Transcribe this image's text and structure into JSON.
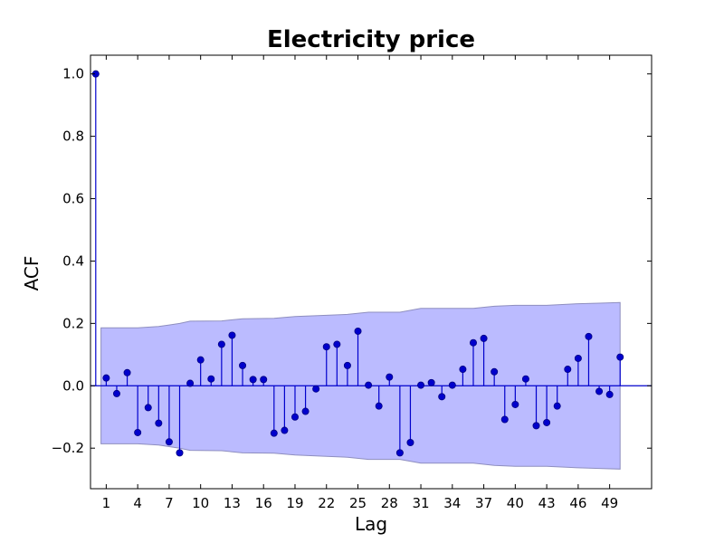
{
  "chart_data": {
    "type": "stem",
    "title": "Electricity price",
    "xlabel": "Lag",
    "ylabel": "ACF",
    "xlim": [
      -0.5,
      53
    ],
    "ylim": [
      -0.33,
      1.06
    ],
    "xticks": [
      1,
      4,
      7,
      10,
      13,
      16,
      19,
      22,
      25,
      28,
      31,
      34,
      37,
      40,
      43,
      46,
      49
    ],
    "xtick_labels": [
      "1",
      "4",
      "7",
      "10",
      "13",
      "16",
      "19",
      "22",
      "25",
      "28",
      "31",
      "34",
      "37",
      "40",
      "43",
      "46",
      "49"
    ],
    "yticks": [
      -0.2,
      0.0,
      0.2,
      0.4,
      0.6,
      0.8,
      1.0
    ],
    "ytick_labels": [
      "−0.2",
      "0.0",
      "0.2",
      "0.4",
      "0.6",
      "0.8",
      "1.0"
    ],
    "grid": false,
    "series": [
      {
        "lags": [
          0,
          1,
          2,
          3,
          4,
          5,
          6,
          7,
          8,
          9,
          10,
          11,
          12,
          13,
          14,
          15,
          16,
          17,
          18,
          19,
          20,
          21,
          22,
          23,
          24,
          25,
          26,
          27,
          28,
          29,
          30,
          31,
          32,
          33,
          34,
          35,
          36,
          37,
          38,
          39,
          40,
          41,
          42,
          43,
          44,
          45,
          46,
          47,
          48,
          49,
          50
        ],
        "values": [
          1.0,
          0.025,
          -0.025,
          0.042,
          -0.15,
          -0.07,
          -0.12,
          -0.18,
          -0.215,
          0.008,
          0.083,
          0.022,
          0.133,
          0.162,
          0.065,
          0.02,
          0.02,
          -0.152,
          -0.143,
          -0.1,
          -0.082,
          -0.01,
          0.125,
          0.133,
          0.065,
          0.175,
          0.002,
          -0.065,
          0.028,
          -0.215,
          -0.182,
          0.002,
          0.01,
          -0.035,
          0.002,
          0.053,
          0.138,
          0.152,
          0.045,
          -0.108,
          -0.06,
          0.022,
          -0.128,
          -0.118,
          -0.065,
          0.053,
          0.088,
          0.158,
          -0.018,
          -0.028,
          0.092
        ]
      }
    ],
    "confidence_band": {
      "lags": [
        0.5,
        4,
        6,
        7,
        8,
        9,
        12,
        14,
        17,
        19,
        22,
        24,
        26,
        29,
        31,
        36,
        38,
        40,
        43,
        46,
        48,
        50
      ],
      "upper": [
        0.186,
        0.186,
        0.19,
        0.195,
        0.2,
        0.207,
        0.208,
        0.215,
        0.216,
        0.222,
        0.226,
        0.229,
        0.236,
        0.236,
        0.248,
        0.248,
        0.255,
        0.258,
        0.258,
        0.263,
        0.265,
        0.267
      ],
      "lower": [
        -0.186,
        -0.186,
        -0.19,
        -0.195,
        -0.2,
        -0.207,
        -0.208,
        -0.215,
        -0.216,
        -0.222,
        -0.226,
        -0.229,
        -0.236,
        -0.236,
        -0.248,
        -0.248,
        -0.255,
        -0.258,
        -0.258,
        -0.263,
        -0.265,
        -0.267
      ]
    },
    "colors": {
      "stem": "#0000cc",
      "marker": "#0000cc",
      "zero_line": "#0000cc",
      "band_fill": "#bbbbff",
      "band_edge": "#8e8ebf",
      "axes": "#000000"
    }
  }
}
